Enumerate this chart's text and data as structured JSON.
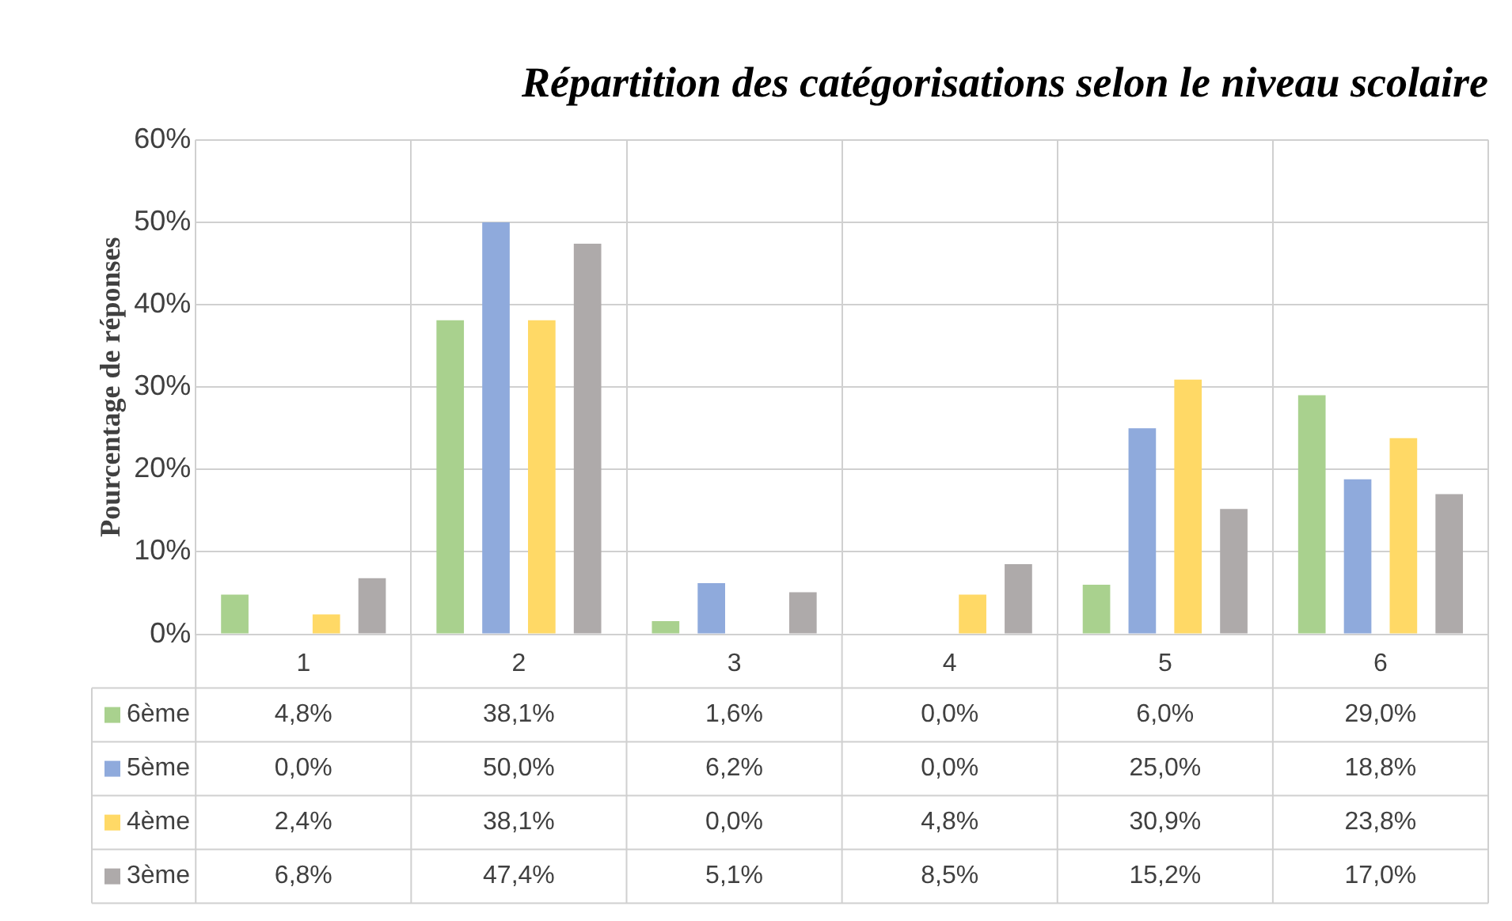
{
  "chart_data": {
    "type": "bar",
    "title": "Répartition des catégorisations selon le niveau scolaire",
    "ylabel": "Pourcentage de réponses",
    "categories": [
      "1",
      "2",
      "3",
      "4",
      "5",
      "6"
    ],
    "series": [
      {
        "name": "6ème",
        "color": "#a9d18e",
        "values": [
          4.8,
          38.1,
          1.6,
          0.0,
          6.0,
          29.0
        ],
        "value_labels": [
          "4,8%",
          "38,1%",
          "1,6%",
          "0,0%",
          "6,0%",
          "29,0%"
        ]
      },
      {
        "name": "5ème",
        "color": "#8faadc",
        "values": [
          0.0,
          50.0,
          6.2,
          0.0,
          25.0,
          18.8
        ],
        "value_labels": [
          "0,0%",
          "50,0%",
          "6,2%",
          "0,0%",
          "25,0%",
          "18,8%"
        ]
      },
      {
        "name": "4ème",
        "color": "#ffd966",
        "values": [
          2.4,
          38.1,
          0.0,
          4.8,
          30.9,
          23.8
        ],
        "value_labels": [
          "2,4%",
          "38,1%",
          "0,0%",
          "4,8%",
          "30,9%",
          "23,8%"
        ]
      },
      {
        "name": "3ème",
        "color": "#aeaaaa",
        "values": [
          6.8,
          47.4,
          5.1,
          8.5,
          15.2,
          17.0
        ],
        "value_labels": [
          "6,8%",
          "47,4%",
          "5,1%",
          "8,5%",
          "15,2%",
          "17,0%"
        ]
      }
    ],
    "ylim": [
      0,
      60
    ],
    "yticks": [
      {
        "value": 0,
        "label": "0%"
      },
      {
        "value": 10,
        "label": "10%"
      },
      {
        "value": 20,
        "label": "20%"
      },
      {
        "value": 30,
        "label": "30%"
      },
      {
        "value": 40,
        "label": "40%"
      },
      {
        "value": 50,
        "label": "50%"
      },
      {
        "value": 60,
        "label": "60%"
      }
    ],
    "grid": true,
    "legend": "bottom"
  }
}
